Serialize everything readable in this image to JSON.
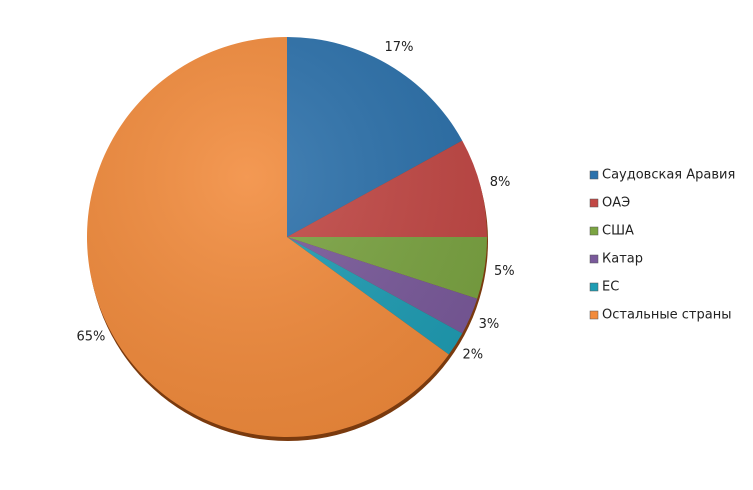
{
  "chart_data": {
    "type": "pie",
    "categories": [
      "Саудовская Аравия",
      "ОАЭ",
      "США",
      "Катар",
      "ЕС",
      "Остальные страны"
    ],
    "values": [
      17,
      8,
      5,
      3,
      2,
      65
    ],
    "value_labels": [
      "17%",
      "8%",
      "5%",
      "3%",
      "2%",
      "65%"
    ],
    "colors": [
      "#2c71ab",
      "#c24845",
      "#7ba442",
      "#7a5a9b",
      "#1f9db4",
      "#f28b3c"
    ],
    "legend": "right"
  }
}
